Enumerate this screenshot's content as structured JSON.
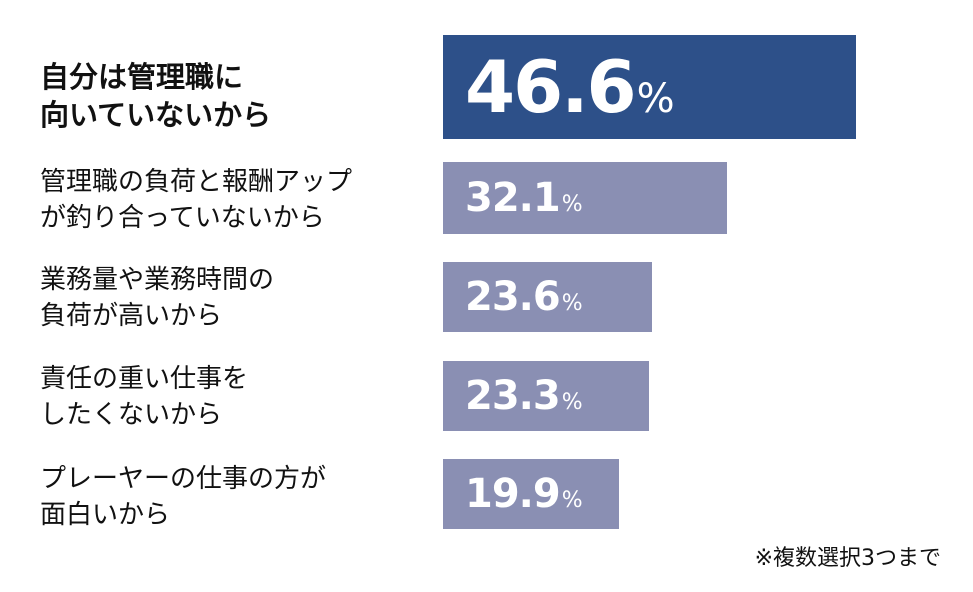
{
  "chart_data": {
    "type": "bar",
    "orientation": "horizontal",
    "categories": [
      "自分は管理職に\n向いていないから",
      "管理職の負荷と報酬アップ\nが釣り合っていないから",
      "業務量や業務時間の\n負荷が高いから",
      "責任の重い仕事を\nしたくないから",
      "プレーヤーの仕事の方が\n面白いから"
    ],
    "values": [
      46.6,
      32.1,
      23.6,
      23.3,
      19.9
    ],
    "value_labels": [
      "46.6",
      "32.1",
      "23.6",
      "23.3",
      "19.9"
    ],
    "unit": "%",
    "xlim": [
      0,
      50
    ],
    "colors": {
      "highlight": "#2d5089",
      "default": "#8a8fb3"
    },
    "highlight_index": 0,
    "footnote": "※複数選択3つまで"
  }
}
